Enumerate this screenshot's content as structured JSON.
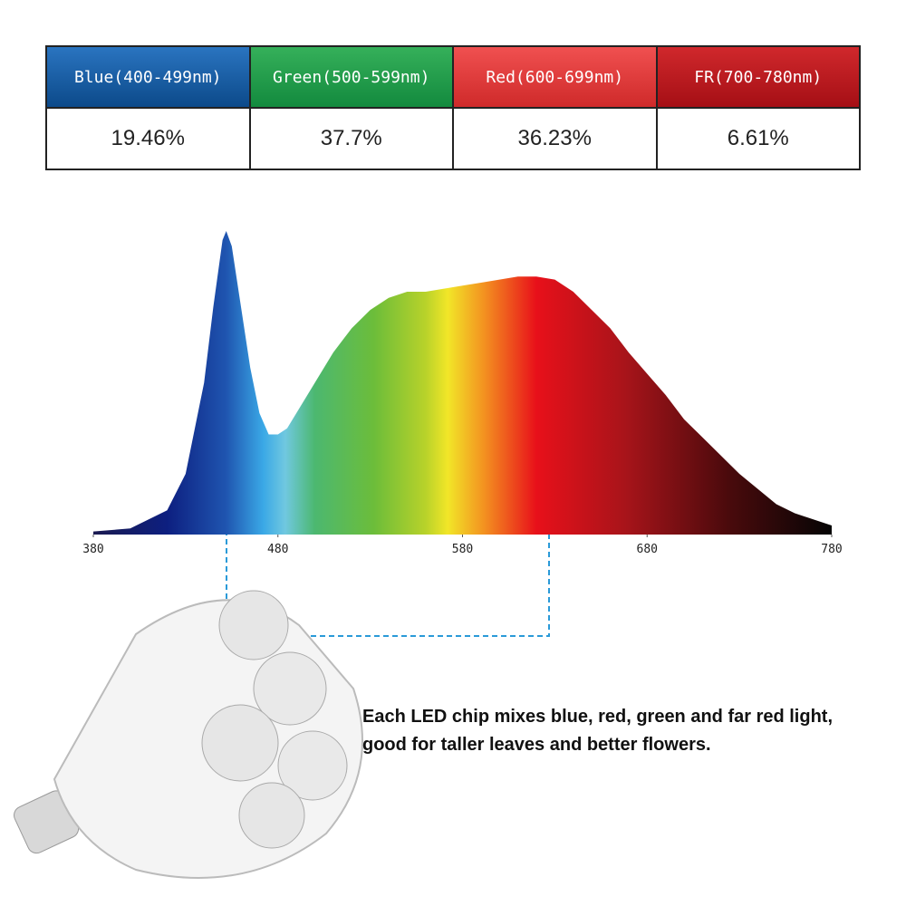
{
  "table": {
    "header": [
      "Blue(400-499nm)",
      "Green(500-599nm)",
      "Red(600-699nm)",
      "FR(700-780nm)"
    ],
    "rows": [
      [
        "19.46%",
        "37.7%",
        "36.23%",
        "6.61%"
      ]
    ]
  },
  "chart_data": {
    "type": "area",
    "x": [
      380,
      400,
      420,
      430,
      440,
      445,
      450,
      452,
      455,
      460,
      465,
      470,
      475,
      480,
      485,
      490,
      500,
      510,
      520,
      530,
      540,
      550,
      560,
      570,
      580,
      590,
      600,
      610,
      620,
      630,
      640,
      650,
      660,
      670,
      680,
      690,
      700,
      710,
      720,
      730,
      740,
      750,
      760,
      770,
      780
    ],
    "values": [
      0.01,
      0.02,
      0.08,
      0.2,
      0.5,
      0.75,
      0.97,
      1.0,
      0.95,
      0.75,
      0.55,
      0.4,
      0.33,
      0.33,
      0.35,
      0.4,
      0.5,
      0.6,
      0.68,
      0.74,
      0.78,
      0.8,
      0.8,
      0.81,
      0.82,
      0.83,
      0.84,
      0.85,
      0.85,
      0.84,
      0.8,
      0.74,
      0.68,
      0.6,
      0.53,
      0.46,
      0.38,
      0.32,
      0.26,
      0.2,
      0.15,
      0.1,
      0.07,
      0.05,
      0.03
    ],
    "xlim": [
      380,
      780
    ],
    "ylim": [
      0,
      1
    ],
    "xticks": [
      380,
      480,
      580,
      680,
      780
    ]
  },
  "caption": "Each LED chip mixes blue, red, green and far red light, good for taller leaves and better flowers."
}
